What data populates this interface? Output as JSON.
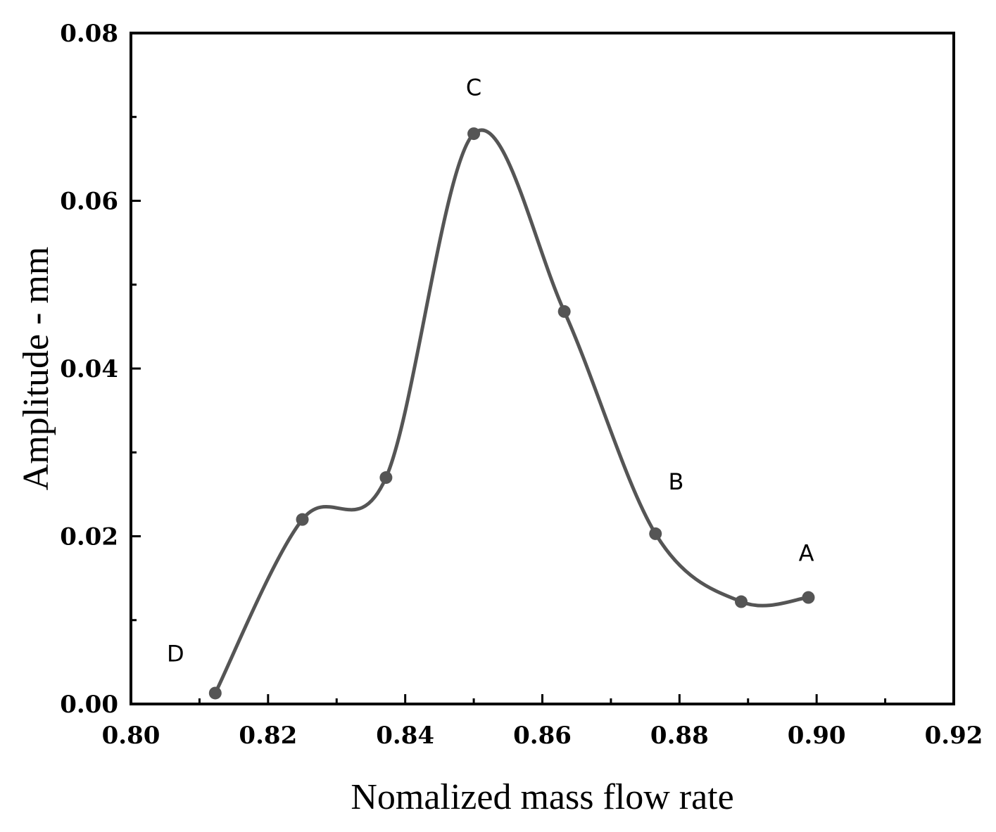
{
  "chart_data": {
    "type": "line",
    "title": "",
    "xlabel": "Nomalized mass flow rate",
    "ylabel": "Amplitude - mm",
    "xlim": [
      0.8,
      0.92
    ],
    "ylim": [
      0.0,
      0.08
    ],
    "xticks": [
      "0.80",
      "0.82",
      "0.84",
      "0.86",
      "0.88",
      "0.90",
      "0.92"
    ],
    "yticks": [
      "0.00",
      "0.02",
      "0.04",
      "0.06",
      "0.08"
    ],
    "grid": false,
    "smooth": true,
    "series": [
      {
        "name": "Amplitude",
        "color": "#555555",
        "x": [
          0.8123,
          0.825,
          0.8372,
          0.85,
          0.8632,
          0.8765,
          0.889,
          0.8988
        ],
        "y": [
          0.0013,
          0.022,
          0.027,
          0.068,
          0.0468,
          0.0203,
          0.0122,
          0.0127
        ]
      }
    ],
    "annotations": [
      {
        "text": "D",
        "x": 0.8065,
        "y": 0.006
      },
      {
        "text": "C",
        "x": 0.85,
        "y": 0.0735
      },
      {
        "text": "B",
        "x": 0.8795,
        "y": 0.0265
      },
      {
        "text": "A",
        "x": 0.8985,
        "y": 0.018
      }
    ]
  }
}
